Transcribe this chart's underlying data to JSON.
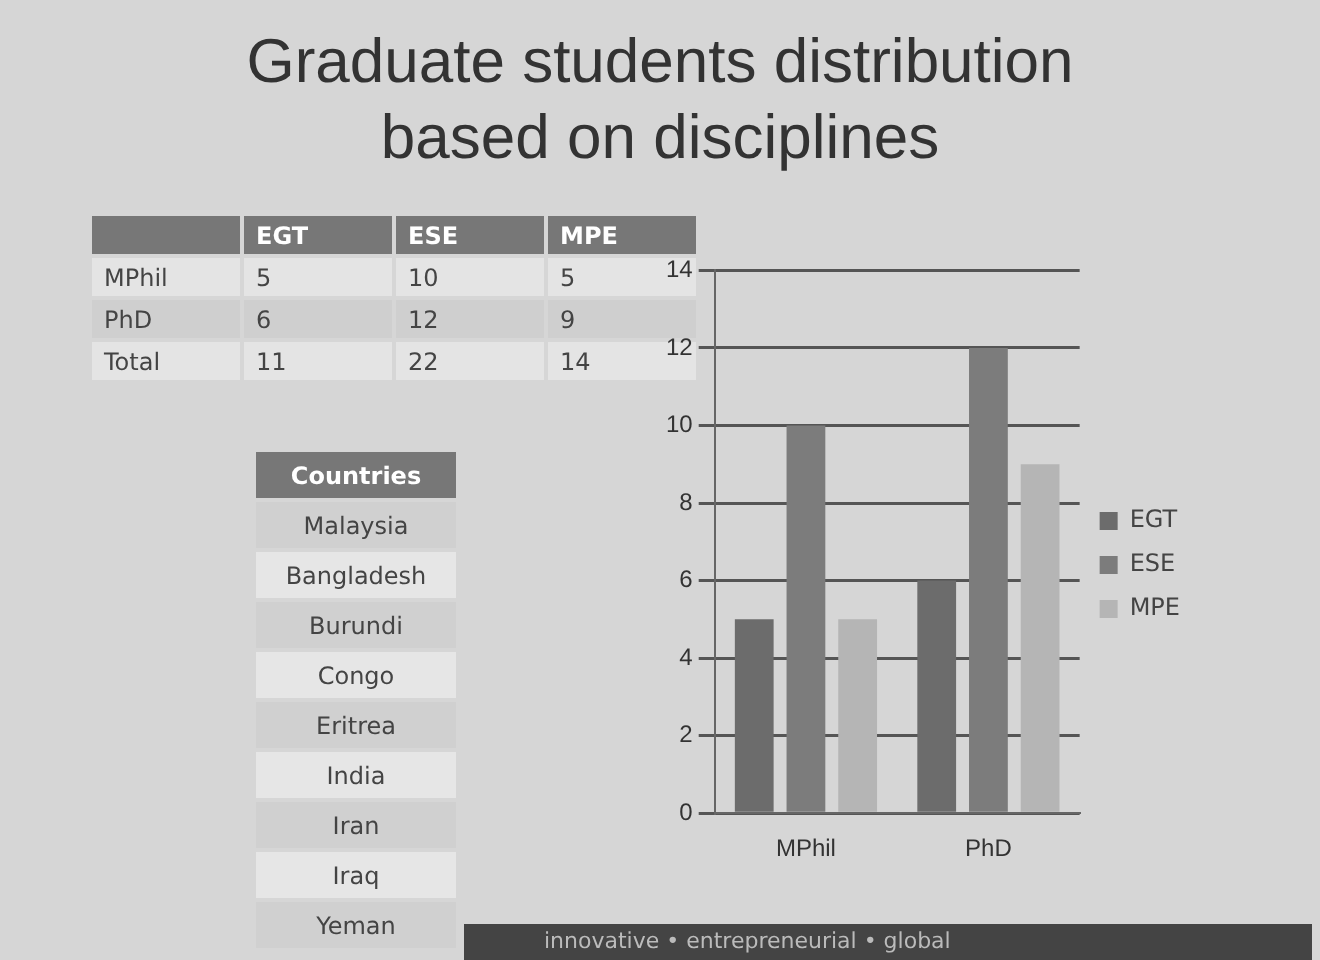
{
  "chart_data": {
    "type": "bar",
    "title": "Graduate students distribution based on disciplines",
    "categories": [
      "MPhil",
      "PhD"
    ],
    "series": [
      {
        "name": "EGT",
        "color": "#6c6c6c",
        "values": [
          5,
          6
        ]
      },
      {
        "name": "ESE",
        "color": "#7c7c7c",
        "values": [
          10,
          12
        ]
      },
      {
        "name": "MPE",
        "color": "#b5b5b5",
        "values": [
          5,
          9
        ]
      }
    ],
    "ylim": [
      0,
      14
    ],
    "yticks": [
      0,
      2,
      4,
      6,
      8,
      10,
      12,
      14
    ],
    "grid": "y",
    "legend": "right",
    "annotations": [
      "5",
      "10",
      "5",
      "6",
      "12",
      "9",
      "11",
      "22",
      "14",
      "Total",
      "Countries",
      "Malaysia",
      "Bangladesh",
      "Burundi",
      "Congo",
      "Eritrea",
      "India",
      "Iran",
      "Iraq",
      "Yeman",
      "innovative • entrepreneurial • global"
    ]
  }
}
